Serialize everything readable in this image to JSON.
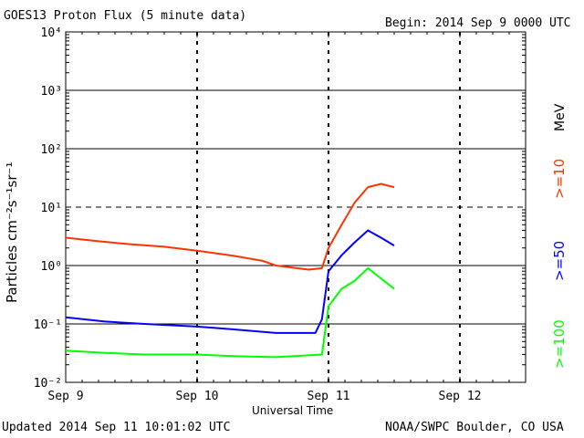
{
  "header": {
    "title": "GOES13 Proton Flux (5 minute data)",
    "begin": "Begin: 2014 Sep 9 0000 UTC"
  },
  "footer": {
    "updated": "Updated 2014 Sep 11 10:01:02 UTC",
    "credit": "NOAA/SWPC Boulder, CO USA"
  },
  "chart_data": {
    "type": "line",
    "title": "GOES13 Proton Flux (5 minute data)",
    "xlabel": "Universal Time",
    "ylabel": "Particles cm⁻²s⁻¹sr⁻¹",
    "y_scale": "log",
    "ylim": [
      0.01,
      10000
    ],
    "x_unit": "days since 2014 Sep 9 0000 UTC",
    "xlim": [
      0,
      3.5
    ],
    "x_ticks": [
      {
        "x": 0,
        "label": "Sep 9"
      },
      {
        "x": 1,
        "label": "Sep 10"
      },
      {
        "x": 2,
        "label": "Sep 11"
      },
      {
        "x": 3,
        "label": "Sep 12"
      }
    ],
    "y_ticks": [
      "10⁻²",
      "10⁻¹",
      "10⁰",
      "10¹",
      "10²",
      "10³",
      "10⁴"
    ],
    "unit_label": "MeV",
    "grid": true,
    "series": [
      {
        "name": ">=10",
        "color": "#ff3300",
        "x": [
          0,
          0.25,
          0.5,
          0.75,
          1.0,
          1.25,
          1.5,
          1.6,
          1.85,
          1.95,
          2.0,
          2.1,
          2.2,
          2.3,
          2.4,
          2.5
        ],
        "y": [
          3.0,
          2.6,
          2.3,
          2.1,
          1.8,
          1.5,
          1.2,
          1.0,
          0.85,
          0.9,
          2.0,
          5.0,
          12,
          22,
          25,
          22
        ]
      },
      {
        "name": ">=50",
        "color": "#0000ff",
        "x": [
          0,
          0.3,
          0.6,
          1.0,
          1.3,
          1.6,
          1.9,
          1.95,
          2.0,
          2.1,
          2.2,
          2.3,
          2.4,
          2.5
        ],
        "y": [
          0.13,
          0.11,
          0.1,
          0.09,
          0.08,
          0.07,
          0.07,
          0.12,
          0.8,
          1.5,
          2.5,
          4.0,
          3.0,
          2.2
        ]
      },
      {
        "name": ">=100",
        "color": "#00ff00",
        "x": [
          0,
          0.3,
          0.6,
          1.0,
          1.3,
          1.6,
          1.95,
          2.0,
          2.1,
          2.2,
          2.3,
          2.4,
          2.5
        ],
        "y": [
          0.035,
          0.032,
          0.03,
          0.03,
          0.028,
          0.027,
          0.03,
          0.2,
          0.4,
          0.55,
          0.9,
          0.6,
          0.4
        ]
      }
    ]
  }
}
